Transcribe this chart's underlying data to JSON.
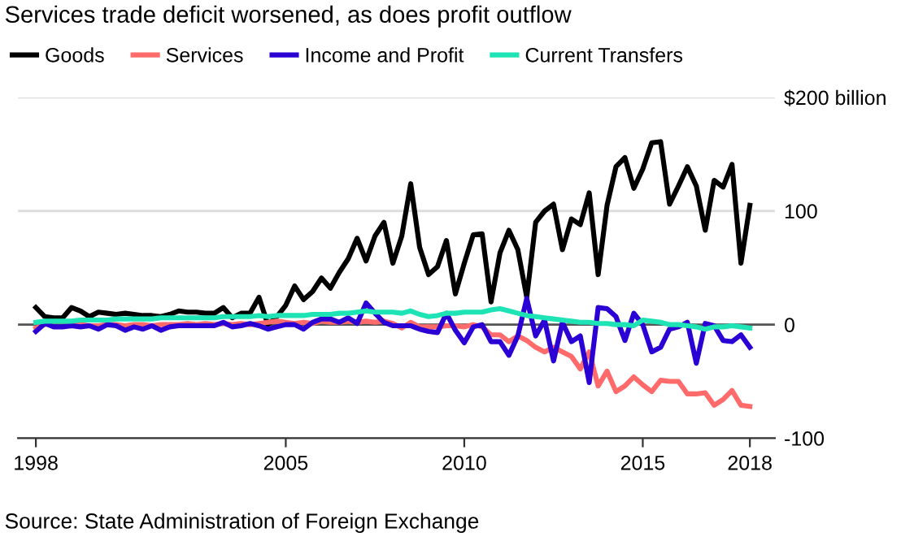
{
  "chart_data": {
    "type": "line",
    "title": "Services trade deficit worsened, as does profit outflow",
    "x": [
      1998,
      1998.25,
      1998.5,
      1998.75,
      1999,
      1999.25,
      1999.5,
      1999.75,
      2000,
      2000.25,
      2000.5,
      2000.75,
      2001,
      2001.25,
      2001.5,
      2001.75,
      2002,
      2002.25,
      2002.5,
      2002.75,
      2003,
      2003.25,
      2003.5,
      2003.75,
      2004,
      2004.25,
      2004.5,
      2004.75,
      2005,
      2005.25,
      2005.5,
      2005.75,
      2006,
      2006.25,
      2006.5,
      2006.75,
      2007,
      2007.25,
      2007.5,
      2007.75,
      2008,
      2008.25,
      2008.5,
      2008.75,
      2009,
      2009.25,
      2009.5,
      2009.75,
      2010,
      2010.25,
      2010.5,
      2010.75,
      2011,
      2011.25,
      2011.5,
      2011.75,
      2012,
      2012.25,
      2012.5,
      2012.75,
      2013,
      2013.25,
      2013.5,
      2013.75,
      2014,
      2014.25,
      2014.5,
      2014.75,
      2015,
      2015.25,
      2015.5,
      2015.75,
      2016,
      2016.25,
      2016.5,
      2016.75,
      2017,
      2017.25,
      2017.5,
      2017.75,
      2018
    ],
    "series": [
      {
        "name": "Goods",
        "color": "#000000",
        "values": [
          15,
          7,
          6,
          6,
          15,
          12,
          7,
          11,
          10,
          9,
          10,
          9,
          8,
          8,
          7,
          9,
          12,
          11,
          11,
          10,
          10,
          15,
          6,
          10,
          10,
          24,
          0,
          7,
          17,
          34,
          22,
          29,
          41,
          32,
          46,
          58,
          76,
          56,
          78,
          90,
          54,
          78,
          124,
          68,
          44,
          51,
          74,
          27,
          54,
          79,
          80,
          20,
          63,
          83,
          66,
          24,
          90,
          100,
          106,
          66,
          93,
          88,
          116,
          44,
          105,
          139,
          147,
          120,
          137,
          160,
          161,
          106,
          122,
          139,
          122,
          83,
          127,
          121,
          141,
          54,
          105
        ]
      },
      {
        "name": "Services",
        "color": "#ff6b6b",
        "values": [
          -3,
          0,
          null,
          null,
          -1,
          0,
          -1,
          -1,
          0,
          0,
          -1,
          0,
          0,
          -1,
          0,
          0,
          0,
          1,
          0,
          1,
          0,
          1,
          0,
          1,
          0,
          1,
          2,
          3,
          2,
          1,
          2,
          1,
          3,
          2,
          2,
          3,
          2,
          3,
          2,
          3,
          1,
          -3,
          2,
          -2,
          -2,
          -2,
          -1,
          -1,
          -2,
          0,
          -2,
          -9,
          -9,
          -15,
          -10,
          -14,
          -20,
          -24,
          -20,
          -24,
          -28,
          -39,
          -24,
          -54,
          -41,
          -59,
          -54,
          -46,
          -53,
          -59,
          -49,
          -50,
          -50,
          -61,
          -61,
          -60,
          -71,
          -66,
          -58,
          -71,
          -72
        ]
      },
      {
        "name": "Income and Profit",
        "color": "#2a00d5",
        "values": [
          -6,
          1,
          -2,
          -2,
          -1,
          -2,
          -1,
          -4,
          0,
          -1,
          -5,
          -2,
          -4,
          -1,
          -5,
          -2,
          -1,
          -1,
          -1,
          -1,
          -1,
          2,
          -2,
          -1,
          1,
          -1,
          -4,
          -2,
          0,
          0,
          -4,
          2,
          5,
          5,
          2,
          6,
          1,
          19,
          10,
          2,
          -1,
          -1,
          -1,
          -4,
          -6,
          -7,
          10,
          -5,
          -16,
          -2,
          0,
          -15,
          -15,
          -27,
          -10,
          23,
          -10,
          4,
          -32,
          2,
          -15,
          -10,
          -51,
          15,
          14,
          7,
          -14,
          10,
          0,
          -24,
          -20,
          -4,
          -2,
          2,
          -34,
          1,
          -1,
          -14,
          -15,
          -9,
          -20
        ]
      },
      {
        "name": "Current Transfers",
        "color": "#1ee3b5",
        "values": [
          2,
          3,
          3,
          3,
          3,
          4,
          4,
          4,
          4,
          5,
          5,
          5,
          5,
          5,
          6,
          6,
          6,
          6,
          6,
          6,
          6,
          7,
          7,
          7,
          7,
          8,
          7,
          8,
          8,
          8,
          8,
          9,
          9,
          9,
          10,
          10,
          11,
          12,
          11,
          11,
          11,
          10,
          12,
          9,
          7,
          8,
          10,
          10,
          11,
          11,
          11,
          13,
          14,
          12,
          10,
          8,
          7,
          6,
          5,
          4,
          3,
          2,
          2,
          1,
          1,
          0,
          0,
          -1,
          4,
          3,
          2,
          0,
          0,
          -1,
          -2,
          -4,
          -2,
          -2,
          -1,
          -2,
          -3
        ]
      }
    ],
    "xlim": [
      1997.5,
      2018.7
    ],
    "xticks": [
      1998,
      2005,
      2010,
      2015,
      2018
    ],
    "ylim": [
      -100,
      200
    ],
    "yticks": [
      -100,
      0,
      100,
      {
        "value": 200,
        "label": "$200 billion"
      }
    ],
    "ref_lines": [
      {
        "axis": "y",
        "value": 0,
        "label": null,
        "color": "#555555"
      }
    ],
    "grid": "y",
    "legend": "top left",
    "line_style": "solid",
    "marker": "none",
    "annotations": [
      "Source: State Administration of Foreign Exchange"
    ]
  }
}
